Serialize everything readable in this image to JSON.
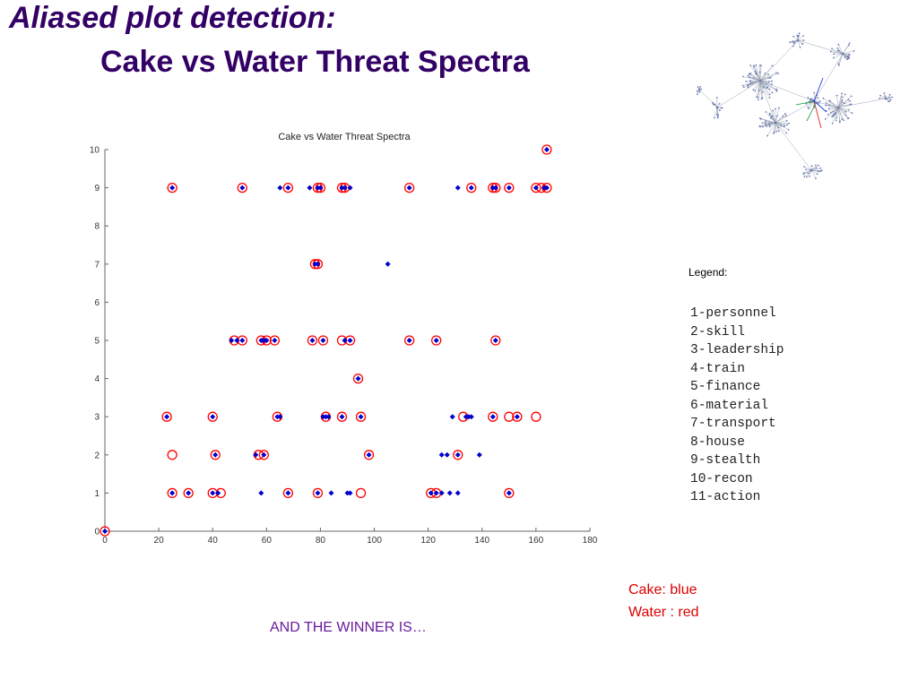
{
  "slide": {
    "title_line1": "Aliased plot detection:",
    "title_line2": "Cake vs Water Threat Spectra",
    "title_color": "#330066"
  },
  "legend": {
    "heading": "Legend:",
    "items": [
      "1-personnel",
      "2-skill",
      "3-leadership",
      "4-train",
      "5-finance",
      "6-material",
      "7-transport",
      "8-house",
      "9-stealth",
      "10-recon",
      "11-action"
    ]
  },
  "key": {
    "cake": "Cake: blue",
    "water": "Water : red"
  },
  "footer": {
    "winner": "AND THE WINNER IS…"
  },
  "chart_data": {
    "type": "scatter",
    "title": "Cake vs Water Threat Spectra",
    "xlabel": "",
    "ylabel": "",
    "xlim": [
      0,
      180
    ],
    "ylim": [
      0,
      10
    ],
    "xticks": [
      0,
      20,
      40,
      60,
      80,
      100,
      120,
      140,
      160,
      180
    ],
    "yticks": [
      0,
      1,
      2,
      3,
      4,
      5,
      6,
      7,
      8,
      9,
      10
    ],
    "grid": false,
    "series": [
      {
        "name": "Cake",
        "color": "#0000cc",
        "marker": "filled-diamond",
        "points": [
          [
            0,
            0
          ],
          [
            25,
            1
          ],
          [
            31,
            1
          ],
          [
            40,
            1
          ],
          [
            42,
            1
          ],
          [
            58,
            1
          ],
          [
            68,
            1
          ],
          [
            79,
            1
          ],
          [
            84,
            1
          ],
          [
            90,
            1
          ],
          [
            91,
            1
          ],
          [
            121,
            1
          ],
          [
            123,
            1
          ],
          [
            125,
            1
          ],
          [
            128,
            1
          ],
          [
            131,
            1
          ],
          [
            150,
            1
          ],
          [
            41,
            2
          ],
          [
            56,
            2
          ],
          [
            59,
            2
          ],
          [
            98,
            2
          ],
          [
            125,
            2
          ],
          [
            127,
            2
          ],
          [
            131,
            2
          ],
          [
            139,
            2
          ],
          [
            23,
            3
          ],
          [
            40,
            3
          ],
          [
            64,
            3
          ],
          [
            65,
            3
          ],
          [
            81,
            3
          ],
          [
            82,
            3
          ],
          [
            83,
            3
          ],
          [
            88,
            3
          ],
          [
            95,
            3
          ],
          [
            129,
            3
          ],
          [
            134,
            3
          ],
          [
            135,
            3
          ],
          [
            136,
            3
          ],
          [
            144,
            3
          ],
          [
            153,
            3
          ],
          [
            94,
            4
          ],
          [
            47,
            5
          ],
          [
            49,
            5
          ],
          [
            51,
            5
          ],
          [
            58,
            5
          ],
          [
            59,
            5
          ],
          [
            60,
            5
          ],
          [
            63,
            5
          ],
          [
            77,
            5
          ],
          [
            81,
            5
          ],
          [
            89,
            5
          ],
          [
            91,
            5
          ],
          [
            113,
            5
          ],
          [
            123,
            5
          ],
          [
            145,
            5
          ],
          [
            78,
            7
          ],
          [
            79,
            7
          ],
          [
            105,
            7
          ],
          [
            25,
            9
          ],
          [
            51,
            9
          ],
          [
            65,
            9
          ],
          [
            68,
            9
          ],
          [
            76,
            9
          ],
          [
            79,
            9
          ],
          [
            80,
            9
          ],
          [
            88,
            9
          ],
          [
            89,
            9
          ],
          [
            91,
            9
          ],
          [
            113,
            9
          ],
          [
            131,
            9
          ],
          [
            136,
            9
          ],
          [
            144,
            9
          ],
          [
            145,
            9
          ],
          [
            150,
            9
          ],
          [
            160,
            9
          ],
          [
            163,
            9
          ],
          [
            164,
            9
          ],
          [
            164,
            10
          ]
        ]
      },
      {
        "name": "Water",
        "color": "#ff0000",
        "marker": "open-circle",
        "points": [
          [
            0,
            0
          ],
          [
            25,
            1
          ],
          [
            31,
            1
          ],
          [
            40,
            1
          ],
          [
            43,
            1
          ],
          [
            68,
            1
          ],
          [
            79,
            1
          ],
          [
            95,
            1
          ],
          [
            121,
            1
          ],
          [
            123,
            1
          ],
          [
            150,
            1
          ],
          [
            25,
            2
          ],
          [
            41,
            2
          ],
          [
            57,
            2
          ],
          [
            59,
            2
          ],
          [
            98,
            2
          ],
          [
            131,
            2
          ],
          [
            23,
            3
          ],
          [
            40,
            3
          ],
          [
            64,
            3
          ],
          [
            82,
            3
          ],
          [
            88,
            3
          ],
          [
            95,
            3
          ],
          [
            133,
            3
          ],
          [
            144,
            3
          ],
          [
            150,
            3
          ],
          [
            153,
            3
          ],
          [
            160,
            3
          ],
          [
            94,
            4
          ],
          [
            48,
            5
          ],
          [
            51,
            5
          ],
          [
            58,
            5
          ],
          [
            60,
            5
          ],
          [
            63,
            5
          ],
          [
            77,
            5
          ],
          [
            81,
            5
          ],
          [
            88,
            5
          ],
          [
            91,
            5
          ],
          [
            113,
            5
          ],
          [
            123,
            5
          ],
          [
            145,
            5
          ],
          [
            78,
            7
          ],
          [
            79,
            7
          ],
          [
            25,
            9
          ],
          [
            51,
            9
          ],
          [
            68,
            9
          ],
          [
            79,
            9
          ],
          [
            80,
            9
          ],
          [
            88,
            9
          ],
          [
            89,
            9
          ],
          [
            113,
            9
          ],
          [
            136,
            9
          ],
          [
            144,
            9
          ],
          [
            145,
            9
          ],
          [
            150,
            9
          ],
          [
            160,
            9
          ],
          [
            162,
            9
          ],
          [
            164,
            9
          ],
          [
            164,
            10
          ]
        ]
      }
    ]
  }
}
